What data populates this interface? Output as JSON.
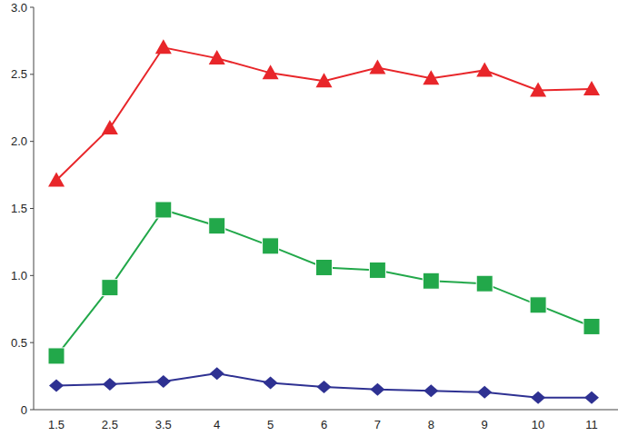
{
  "chart_data": {
    "type": "line",
    "categories": [
      "1.5",
      "2.5",
      "3.5",
      "4",
      "5",
      "6",
      "7",
      "8",
      "9",
      "10",
      "11"
    ],
    "series": [
      {
        "color": "#e8262a",
        "marker": "triangle",
        "values": [
          1.71,
          2.1,
          2.7,
          2.62,
          2.51,
          2.45,
          2.55,
          2.47,
          2.53,
          2.38,
          2.39
        ]
      },
      {
        "color": "#22a84a",
        "marker": "square",
        "values": [
          0.4,
          0.91,
          1.49,
          1.37,
          1.22,
          1.06,
          1.04,
          0.96,
          0.94,
          0.78,
          0.62
        ]
      },
      {
        "color": "#2e3192",
        "marker": "diamond",
        "values": [
          0.18,
          0.19,
          0.21,
          0.27,
          0.2,
          0.17,
          0.15,
          0.14,
          0.13,
          0.09,
          0.09
        ]
      }
    ],
    "ylim": [
      0,
      3
    ],
    "yticks": [
      0,
      0.5,
      {
        "value": 1,
        "label": "1.0"
      },
      1.5,
      {
        "value": 2,
        "label": "2.0"
      },
      2.5,
      {
        "value": 3,
        "label": "3.0"
      }
    ],
    "grid": false
  }
}
